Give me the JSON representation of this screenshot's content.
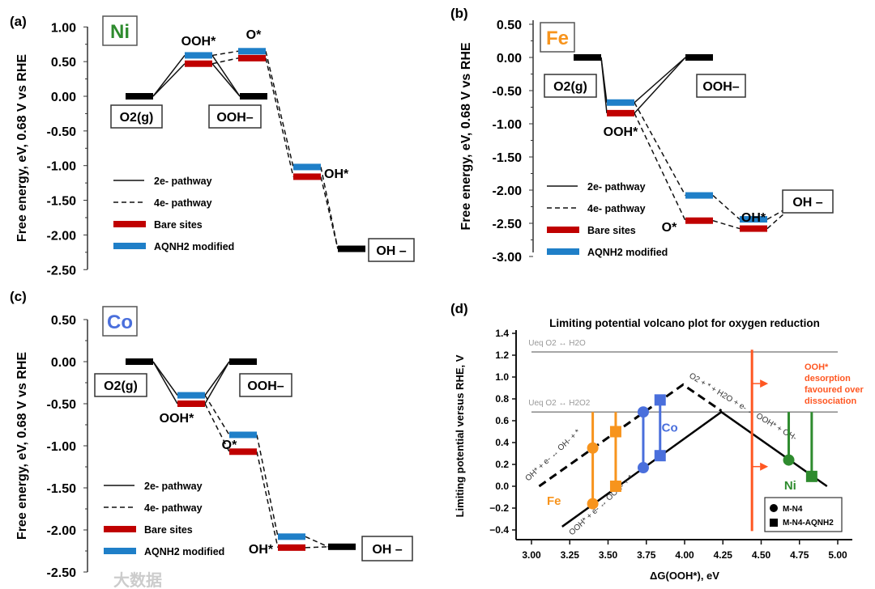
{
  "chart_data": [
    {
      "type": "energy-diagram",
      "panel_label": "(a)",
      "metal": "Ni",
      "metal_color": "#2e8b2e",
      "ylabel": "Free energy, eV, 0.68 V vs RHE",
      "ylim": [
        -2.5,
        1.0
      ],
      "yticks": [
        "1.00",
        "0.50",
        "0.00",
        "-0.50",
        "-1.00",
        "-1.50",
        "-2.00",
        "-2.50"
      ],
      "states": {
        "O2": {
          "label": "O2(g)",
          "value": 0.0
        },
        "OOH_star": {
          "label": "OOH*",
          "bare": 0.47,
          "modified": 0.59
        },
        "O_star": {
          "label": "O*",
          "bare": 0.55,
          "modified": 0.65
        },
        "OOH_minus": {
          "label": "OOH–",
          "value": 0.0
        },
        "OH_star": {
          "label": "OH*",
          "bare": -1.16,
          "modified": -1.02
        },
        "OH_minus": {
          "label": "OH –",
          "value": -2.2
        }
      },
      "legend": [
        "2e- pathway",
        "4e- pathway",
        "Bare sites",
        "AQNH2 modified"
      ]
    },
    {
      "type": "energy-diagram",
      "panel_label": "(b)",
      "metal": "Fe",
      "metal_color": "#f7941d",
      "ylabel": "Free energy, eV, 0.68 V vs RHE",
      "ylim": [
        -3.0,
        0.5
      ],
      "yticks": [
        "0.50",
        "0.00",
        "-0.50",
        "-1.00",
        "-1.50",
        "-2.00",
        "-2.50",
        "-3.00"
      ],
      "states": {
        "O2": {
          "label": "O2(g)",
          "value": 0.0
        },
        "OOH_star": {
          "label": "OOH*",
          "bare": -0.84,
          "modified": -0.68
        },
        "O_star": {
          "label": "O*",
          "bare": -2.46,
          "modified": -2.08
        },
        "OOH_minus": {
          "label": "OOH–",
          "value": 0.0
        },
        "OH_star": {
          "label": "OH*",
          "bare": -2.58,
          "modified": -2.44
        },
        "OH_minus": {
          "label": "OH –",
          "value": -2.2
        }
      },
      "legend": [
        "2e- pathway",
        "4e- pathway",
        "Bare sites",
        "AQNH2 modified"
      ]
    },
    {
      "type": "energy-diagram",
      "panel_label": "(c)",
      "metal": "Co",
      "metal_color": "#4a6fdc",
      "ylabel": "Free energy, eV, 0.68 V vs RHE",
      "ylim": [
        -2.5,
        0.5
      ],
      "yticks": [
        "0.50",
        "0.00",
        "-0.50",
        "-1.00",
        "-1.50",
        "-2.00",
        "-2.50"
      ],
      "states": {
        "O2": {
          "label": "O2(g)",
          "value": 0.0
        },
        "OOH_star": {
          "label": "OOH*",
          "bare": -0.5,
          "modified": -0.4
        },
        "O_star": {
          "label": "O*",
          "bare": -1.07,
          "modified": -0.87
        },
        "OOH_minus": {
          "label": "OOH–",
          "value": 0.0
        },
        "OH_star": {
          "label": "OH*",
          "bare": -2.21,
          "modified": -2.08
        },
        "OH_minus": {
          "label": "OH –",
          "value": -2.2
        }
      },
      "legend": [
        "2e- pathway",
        "4e- pathway",
        "Bare sites",
        "AQNH2 modified"
      ]
    },
    {
      "type": "scatter",
      "panel_label": "(d)",
      "title": "Limiting potential volcano plot for oxygen reduction",
      "xlabel": "ΔG(OOH*), eV",
      "ylabel": "Limiting potential versus RHE, V",
      "xlim": [
        3.0,
        5.0
      ],
      "ylim": [
        -0.4,
        1.4
      ],
      "xticks": [
        "3.00",
        "3.25",
        "3.50",
        "3.75",
        "4.00",
        "4.25",
        "4.50",
        "4.75",
        "5.00"
      ],
      "yticks": [
        "1.4",
        "1.2",
        "1.0",
        "0.8",
        "0.6",
        "0.4",
        "0.2",
        "0.0",
        "−0.2",
        "−0.4"
      ],
      "ref_lines": [
        {
          "label": "Ueq O2 ↔ H2O",
          "y": 1.23
        },
        {
          "label": "Ueq O2 ↔ H2O2",
          "y": 0.68
        }
      ],
      "volcano_4e": {
        "points": [
          [
            3.05,
            0.0
          ],
          [
            3.99,
            0.93
          ],
          [
            4.24,
            0.69
          ]
        ],
        "label": "OH* + e- ↔ OH- + *"
      },
      "volcano_2e": {
        "points": [
          [
            3.2,
            -0.37
          ],
          [
            4.24,
            0.68
          ],
          [
            4.93,
            0.0
          ]
        ],
        "label_left": "OOH* + e- ↔ OOH- + *",
        "label_right": "O2 + * + H2O + e- ↔ OOH* + OH-"
      },
      "divider": {
        "x": 4.44,
        "color": "#ff5722",
        "annotation": [
          "OOH*",
          "desorption",
          "favoured over",
          "dissociation"
        ]
      },
      "series": [
        {
          "name": "Fe",
          "color": "#f7941d",
          "circle": {
            "x": 3.4,
            "y": [
              0.35,
              -0.16
            ]
          },
          "square": {
            "x": 3.55,
            "y": [
              0.5,
              0.0
            ]
          }
        },
        {
          "name": "Co",
          "color": "#4a6fdc",
          "circle": {
            "x": 3.73,
            "y": [
              0.68,
              0.17
            ]
          },
          "square": {
            "x": 3.84,
            "y": [
              0.79,
              0.28
            ]
          }
        },
        {
          "name": "Ni",
          "color": "#2e8b2e",
          "circle": {
            "x": 4.68,
            "y": [
              0.24
            ]
          },
          "square": {
            "x": 4.83,
            "y": [
              0.09
            ]
          }
        }
      ],
      "legend": [
        "M-N4",
        "M-N4-AQNH2"
      ]
    }
  ],
  "colors": {
    "bare": "#c00000",
    "modified": "#1f7fc8"
  },
  "watermark": "大数据"
}
